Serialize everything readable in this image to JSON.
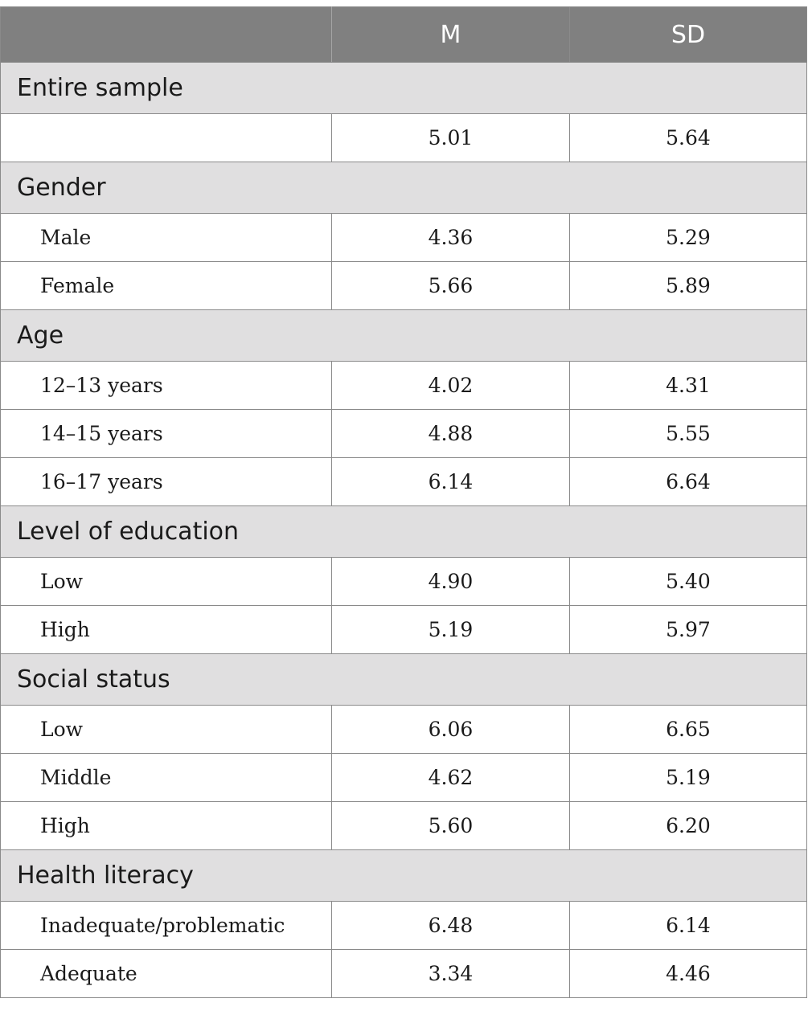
{
  "header": {
    "col_label": "",
    "col_m": "M",
    "col_sd": "SD"
  },
  "groups": [
    {
      "title": "Entire sample",
      "rows": [
        {
          "label": "",
          "m": "5.01",
          "sd": "5.64"
        }
      ]
    },
    {
      "title": "Gender",
      "rows": [
        {
          "label": "Male",
          "m": "4.36",
          "sd": "5.29"
        },
        {
          "label": "Female",
          "m": "5.66",
          "sd": "5.89"
        }
      ]
    },
    {
      "title": "Age",
      "rows": [
        {
          "label": "12–13 years",
          "m": "4.02",
          "sd": "4.31"
        },
        {
          "label": "14–15 years",
          "m": "4.88",
          "sd": "5.55"
        },
        {
          "label": "16–17 years",
          "m": "6.14",
          "sd": "6.64"
        }
      ]
    },
    {
      "title": "Level of education",
      "rows": [
        {
          "label": "Low",
          "m": "4.90",
          "sd": "5.40"
        },
        {
          "label": "High",
          "m": "5.19",
          "sd": "5.97"
        }
      ]
    },
    {
      "title": "Social status",
      "rows": [
        {
          "label": "Low",
          "m": "6.06",
          "sd": "6.65"
        },
        {
          "label": "Middle",
          "m": "4.62",
          "sd": "5.19"
        },
        {
          "label": "High",
          "m": "5.60",
          "sd": "6.20"
        }
      ]
    },
    {
      "title": "Health literacy",
      "rows": [
        {
          "label": "Inadequate/problematic",
          "m": "6.48",
          "sd": "6.14"
        },
        {
          "label": "Adequate",
          "m": "3.34",
          "sd": "4.46"
        }
      ]
    }
  ],
  "colors": {
    "header_bg": "#808080",
    "group_bg": "#e0dfe0",
    "border": "#8a8a8a"
  }
}
